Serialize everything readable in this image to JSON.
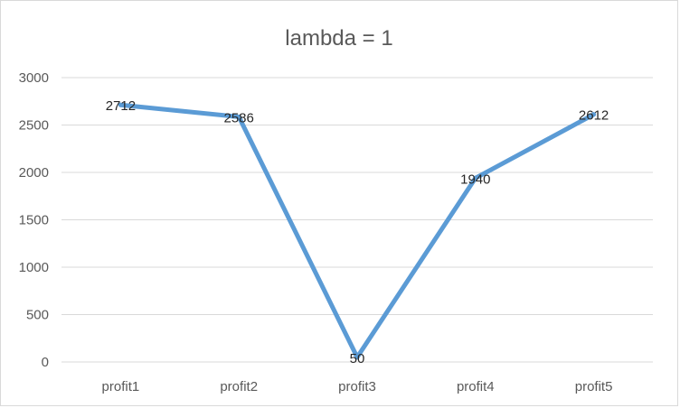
{
  "chart_data": {
    "type": "line",
    "title": "lambda = 1",
    "categories": [
      "profit1",
      "profit2",
      "profit3",
      "profit4",
      "profit5"
    ],
    "series": [
      {
        "values": [
          2712,
          2586,
          50,
          1940,
          2612
        ],
        "color": "#5b9bd5"
      }
    ],
    "ylim": [
      0,
      3000
    ],
    "yticks": [
      "0",
      "500",
      "1000",
      "1500",
      "2000",
      "2500",
      "3000"
    ],
    "data_labels": [
      "2712",
      "2586",
      "50",
      "1940",
      "2612"
    ],
    "grid": true,
    "legend": "none"
  }
}
